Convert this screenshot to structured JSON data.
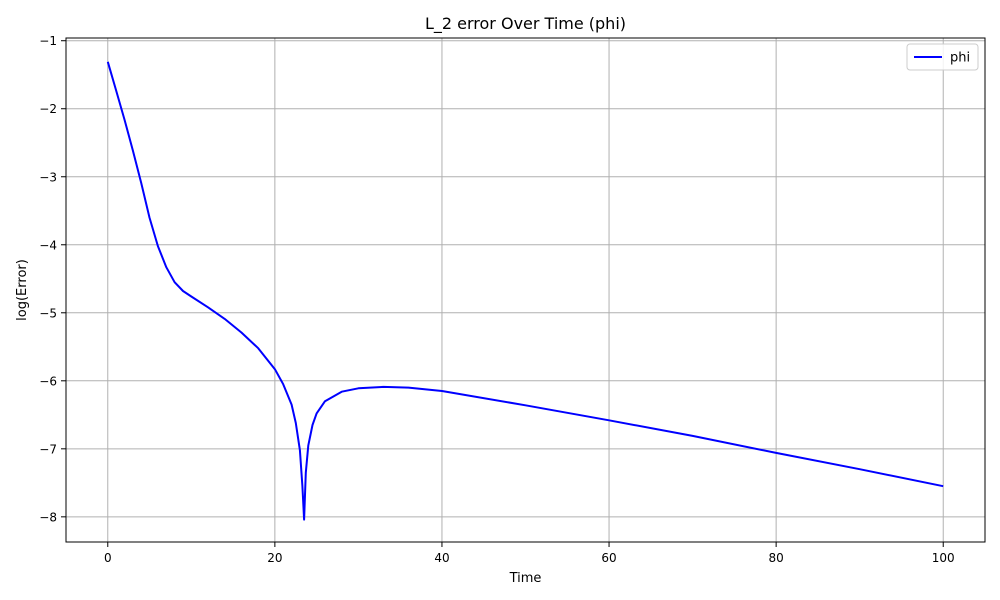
{
  "chart_data": {
    "type": "line",
    "title": "L_2 error Over Time (phi)",
    "xlabel": "Time",
    "ylabel": "log(Error)",
    "xlim": [
      -5,
      105
    ],
    "ylim": [
      -8.37,
      -0.96
    ],
    "xticks": [
      0,
      20,
      40,
      60,
      80,
      100
    ],
    "yticks": [
      -8,
      -7,
      -6,
      -5,
      -4,
      -3,
      -2,
      -1
    ],
    "xtick_labels": [
      "0",
      "20",
      "40",
      "60",
      "80",
      "100"
    ],
    "ytick_labels": [
      "−8",
      "−7",
      "−6",
      "−5",
      "−4",
      "−3",
      "−2",
      "−1"
    ],
    "grid": true,
    "legend_position": "top-right",
    "series": [
      {
        "name": "phi",
        "color": "#0000ff",
        "x": [
          0,
          1,
          2,
          3,
          4,
          5,
          6,
          7,
          8,
          9,
          10,
          12,
          14,
          16,
          18,
          20,
          21,
          22,
          22.5,
          23,
          23.3,
          23.5,
          23.7,
          24,
          24.5,
          25,
          26,
          28,
          30,
          33,
          36,
          40,
          50,
          60,
          70,
          80,
          90,
          100
        ],
        "y": [
          -1.31,
          -1.73,
          -2.16,
          -2.61,
          -3.09,
          -3.6,
          -4.02,
          -4.33,
          -4.55,
          -4.68,
          -4.76,
          -4.92,
          -5.09,
          -5.29,
          -5.52,
          -5.83,
          -6.05,
          -6.35,
          -6.62,
          -7.02,
          -7.55,
          -8.04,
          -7.35,
          -6.95,
          -6.65,
          -6.48,
          -6.3,
          -6.16,
          -6.11,
          -6.09,
          -6.1,
          -6.15,
          -6.36,
          -6.58,
          -6.81,
          -7.06,
          -7.3,
          -7.55
        ]
      }
    ]
  }
}
